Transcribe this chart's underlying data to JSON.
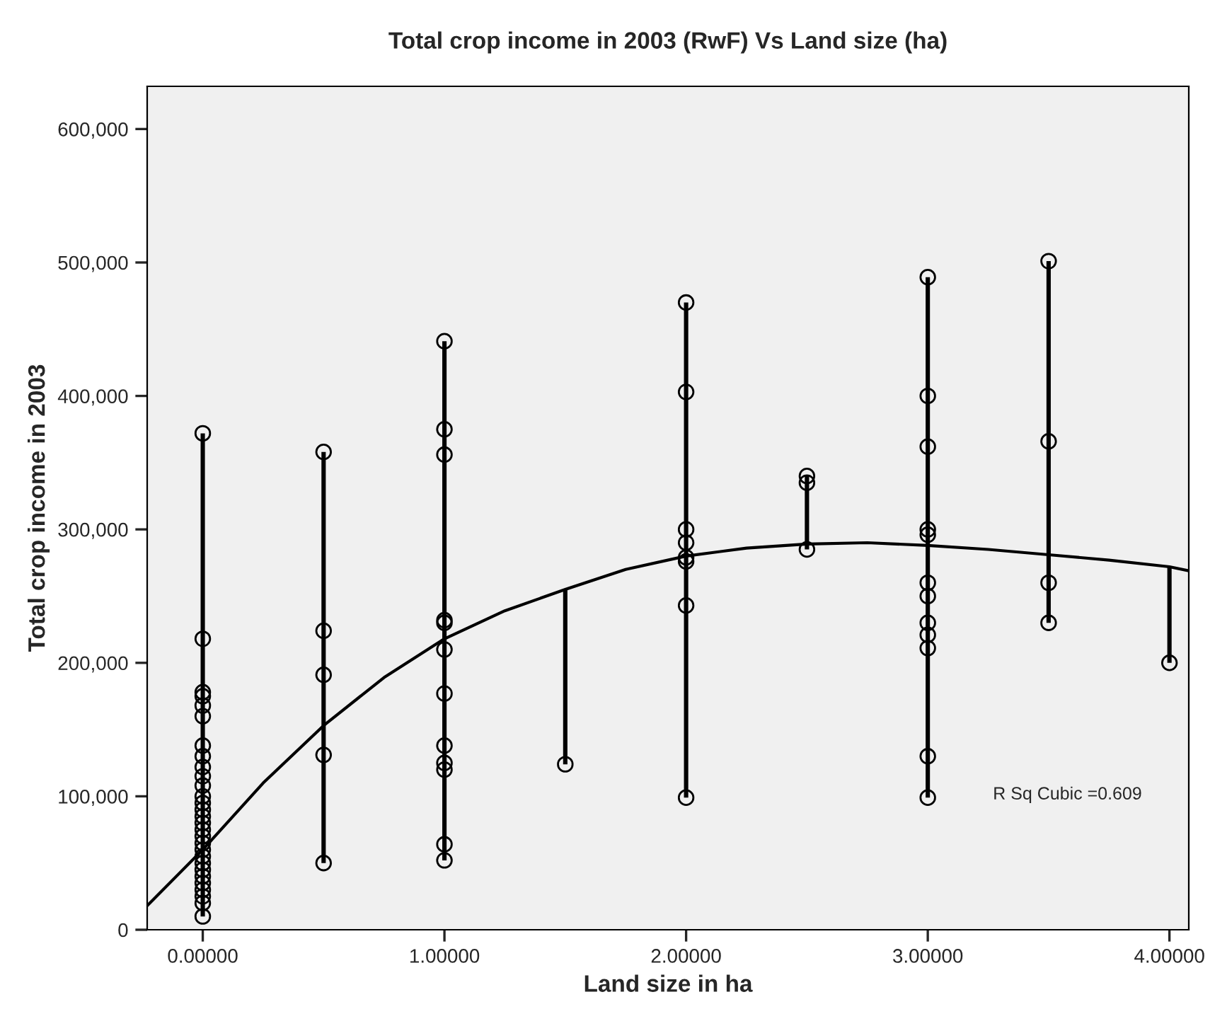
{
  "chart_data": {
    "type": "scatter",
    "title": "Total crop income in 2003 (RwF) Vs Land size (ha)",
    "xlabel": "Land size in ha",
    "ylabel": "Total crop income in 2003",
    "series": [
      {
        "color": "#000000",
        "marker": "circle",
        "errors": [
          [
            10000,
            372000
          ],
          null,
          null,
          null,
          null,
          null,
          null,
          null,
          null,
          null,
          null,
          null,
          null,
          null,
          null,
          null,
          null,
          null,
          null,
          null,
          null,
          null,
          null,
          null,
          null,
          null,
          null,
          null,
          null,
          [
            50000,
            358000
          ],
          null,
          null,
          null,
          null,
          [
            52000,
            441000
          ],
          null,
          null,
          null,
          null,
          null,
          null,
          null,
          null,
          null,
          null,
          null,
          [
            124000,
            255000
          ],
          [
            99000,
            470000
          ],
          null,
          null,
          null,
          null,
          null,
          null,
          null,
          [
            285000,
            340000
          ],
          null,
          null,
          [
            99000,
            489000
          ],
          null,
          null,
          null,
          null,
          null,
          null,
          null,
          null,
          null,
          null,
          null,
          [
            230000,
            501000
          ],
          null,
          null,
          null,
          [
            200000,
            272000
          ]
        ],
        "x": [
          0,
          0,
          0,
          0,
          0,
          0,
          0,
          0,
          0,
          0,
          0,
          0,
          0,
          0,
          0,
          0,
          0,
          0,
          0,
          0,
          0,
          0,
          0,
          0,
          0,
          0,
          0,
          0,
          0,
          0.5,
          0.5,
          0.5,
          0.5,
          0.5,
          1,
          1,
          1,
          1,
          1,
          1,
          1,
          1,
          1,
          1,
          1,
          1,
          1.5,
          2,
          2,
          2,
          2,
          2,
          2,
          2,
          2,
          2.5,
          2.5,
          2.5,
          3,
          3,
          3,
          3,
          3,
          3,
          3,
          3,
          3,
          3,
          3,
          3,
          3.5,
          3.5,
          3.5,
          3.5,
          4
        ],
        "values": [
          372000,
          218000,
          178000,
          175000,
          168000,
          160000,
          138000,
          130000,
          122000,
          115000,
          108000,
          100000,
          95000,
          90000,
          85000,
          80000,
          75000,
          70000,
          65000,
          60000,
          55000,
          50000,
          45000,
          40000,
          35000,
          30000,
          25000,
          20000,
          10000,
          358000,
          224000,
          191000,
          131000,
          50000,
          441000,
          375000,
          356000,
          232000,
          230000,
          210000,
          177000,
          138000,
          125000,
          120000,
          64000,
          52000,
          124000,
          470000,
          403000,
          300000,
          290000,
          279000,
          276000,
          243000,
          99000,
          340000,
          335000,
          285000,
          489000,
          400000,
          362000,
          300000,
          296000,
          260000,
          250000,
          230000,
          221000,
          211000,
          130000,
          99000,
          501000,
          366000,
          260000,
          230000,
          200000
        ]
      },
      {
        "type": "line",
        "color": "#000000",
        "marker": "none",
        "line_style": "solid",
        "x": [
          -0.23,
          0,
          0.25,
          0.5,
          0.75,
          1,
          1.25,
          1.5,
          1.75,
          2,
          2.25,
          2.5,
          2.75,
          3,
          3.25,
          3.5,
          3.75,
          4,
          4.08
        ],
        "values": [
          18000,
          60000,
          110000,
          153000,
          189000,
          218000,
          239000,
          255000,
          270000,
          280000,
          286000,
          289000,
          290000,
          288000,
          285000,
          281000,
          277000,
          272000,
          269000
        ]
      }
    ],
    "xlim": [
      -0.23,
      4.08
    ],
    "ylim": [
      0,
      632000
    ],
    "xticks": [
      {
        "value": 0,
        "label": "0.00000"
      },
      {
        "value": 1,
        "label": "1.00000"
      },
      {
        "value": 2,
        "label": "2.00000"
      },
      {
        "value": 3,
        "label": "3.00000"
      },
      {
        "value": 4,
        "label": "4.00000"
      }
    ],
    "yticks": [
      {
        "value": 0,
        "label": "0"
      },
      {
        "value": 100000,
        "label": "100,000"
      },
      {
        "value": 200000,
        "label": "200,000"
      },
      {
        "value": 300000,
        "label": "300,000"
      },
      {
        "value": 400000,
        "label": "400,000"
      },
      {
        "value": 500000,
        "label": "500,000"
      },
      {
        "value": 600000,
        "label": "600,000"
      }
    ],
    "annotations": [
      "R Sq Cubic =0.609"
    ],
    "grid": false,
    "legend": false
  }
}
